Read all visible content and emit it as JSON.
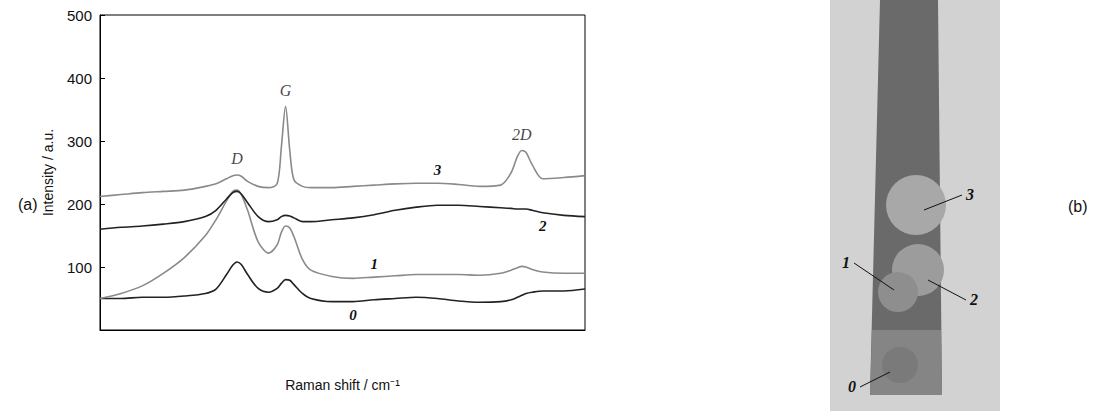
{
  "chart_data": {
    "type": "line",
    "panel": "(a)",
    "x_label": "Raman shift / cm⁻¹",
    "y_label": "Intensity / a.u.",
    "x": [
      700,
      800,
      900,
      1000,
      1100,
      1200,
      1250,
      1300,
      1330,
      1350,
      1370,
      1400,
      1450,
      1500,
      1540,
      1560,
      1580,
      1600,
      1620,
      1660,
      1700,
      1800,
      1900,
      2000,
      2100,
      2200,
      2300,
      2400,
      2500,
      2600,
      2650,
      2680,
      2700,
      2720,
      2750,
      2800,
      2900,
      3000
    ],
    "series": [
      {
        "name": "0",
        "color": "#222222",
        "values": [
          50,
          50,
          52,
          52,
          54,
          58,
          65,
          88,
          103,
          108,
          104,
          88,
          66,
          60,
          66,
          74,
          80,
          79,
          72,
          58,
          50,
          45,
          45,
          48,
          50,
          52,
          50,
          46,
          44,
          45,
          48,
          52,
          55,
          58,
          60,
          62,
          62,
          65
        ]
      },
      {
        "name": "1",
        "color": "#8a8a8a",
        "values": [
          50,
          58,
          70,
          90,
          115,
          150,
          175,
          205,
          220,
          222,
          215,
          190,
          140,
          122,
          135,
          155,
          165,
          162,
          148,
          112,
          95,
          85,
          82,
          84,
          86,
          88,
          88,
          88,
          87,
          90,
          95,
          99,
          101,
          100,
          96,
          92,
          90,
          90
        ]
      },
      {
        "name": "2",
        "color": "#222222",
        "values": [
          160,
          163,
          165,
          168,
          172,
          180,
          190,
          208,
          218,
          220,
          216,
          202,
          180,
          172,
          175,
          180,
          182,
          181,
          178,
          172,
          172,
          175,
          178,
          183,
          190,
          195,
          198,
          198,
          196,
          194,
          193,
          192,
          192,
          192,
          190,
          186,
          182,
          180
        ]
      },
      {
        "name": "3",
        "color": "#8a8a8a",
        "values": [
          212,
          215,
          218,
          220,
          222,
          228,
          232,
          240,
          245,
          246,
          244,
          236,
          228,
          226,
          232,
          290,
          355,
          285,
          238,
          228,
          226,
          226,
          228,
          230,
          232,
          233,
          233,
          231,
          228,
          230,
          250,
          276,
          285,
          282,
          262,
          240,
          242,
          245
        ]
      }
    ],
    "xlim": [
      700,
      3000
    ],
    "ylim": [
      0,
      500
    ],
    "yticks": [
      100,
      200,
      300,
      400,
      500
    ],
    "tick_labels": "y",
    "grid": false,
    "annotations": [
      {
        "text": "D",
        "x": 1350,
        "y": 272
      },
      {
        "text": "G",
        "x": 1580,
        "y": 380
      },
      {
        "text": "2D",
        "x": 2700,
        "y": 310
      }
    ]
  },
  "photo": {
    "panel": "(b)",
    "labels": [
      "0",
      "1",
      "2",
      "3"
    ]
  }
}
